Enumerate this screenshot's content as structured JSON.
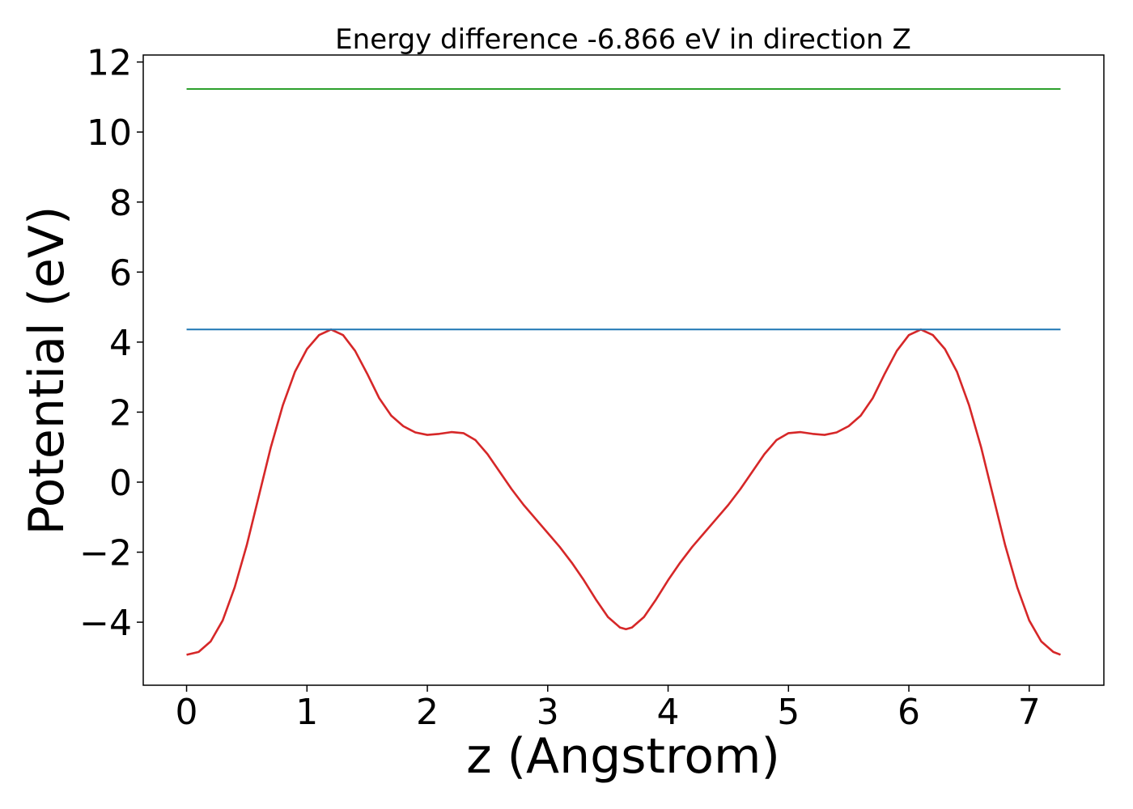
{
  "chart_data": {
    "type": "line",
    "title": "Energy difference -6.866 eV in direction Z",
    "xlabel": "z (Angstrom)",
    "ylabel": "Potential (eV)",
    "xlim": [
      -0.36,
      7.62
    ],
    "ylim": [
      -5.8,
      12.2
    ],
    "xticks": [
      0,
      1,
      2,
      3,
      4,
      5,
      6,
      7
    ],
    "yticks": [
      -4,
      -2,
      0,
      2,
      4,
      6,
      8,
      10,
      12
    ],
    "grid": false,
    "series": [
      {
        "color": "#d62728",
        "style": "curve",
        "points": [
          [
            0.0,
            -4.93
          ],
          [
            0.1,
            -4.85
          ],
          [
            0.2,
            -4.55
          ],
          [
            0.3,
            -3.95
          ],
          [
            0.4,
            -3.0
          ],
          [
            0.5,
            -1.8
          ],
          [
            0.6,
            -0.4
          ],
          [
            0.7,
            1.0
          ],
          [
            0.8,
            2.2
          ],
          [
            0.9,
            3.15
          ],
          [
            1.0,
            3.8
          ],
          [
            1.1,
            4.2
          ],
          [
            1.2,
            4.36
          ],
          [
            1.3,
            4.2
          ],
          [
            1.4,
            3.75
          ],
          [
            1.5,
            3.1
          ],
          [
            1.6,
            2.4
          ],
          [
            1.7,
            1.9
          ],
          [
            1.8,
            1.6
          ],
          [
            1.9,
            1.42
          ],
          [
            2.0,
            1.35
          ],
          [
            2.1,
            1.38
          ],
          [
            2.2,
            1.43
          ],
          [
            2.3,
            1.4
          ],
          [
            2.4,
            1.2
          ],
          [
            2.5,
            0.8
          ],
          [
            2.6,
            0.3
          ],
          [
            2.7,
            -0.2
          ],
          [
            2.8,
            -0.65
          ],
          [
            2.9,
            -1.05
          ],
          [
            3.0,
            -1.45
          ],
          [
            3.1,
            -1.85
          ],
          [
            3.2,
            -2.3
          ],
          [
            3.3,
            -2.8
          ],
          [
            3.4,
            -3.35
          ],
          [
            3.5,
            -3.85
          ],
          [
            3.6,
            -4.15
          ],
          [
            3.65,
            -4.2
          ],
          [
            3.7,
            -4.15
          ],
          [
            3.8,
            -3.85
          ],
          [
            3.9,
            -3.35
          ],
          [
            4.0,
            -2.8
          ],
          [
            4.1,
            -2.3
          ],
          [
            4.2,
            -1.85
          ],
          [
            4.3,
            -1.45
          ],
          [
            4.4,
            -1.05
          ],
          [
            4.5,
            -0.65
          ],
          [
            4.6,
            -0.2
          ],
          [
            4.7,
            0.3
          ],
          [
            4.8,
            0.8
          ],
          [
            4.9,
            1.2
          ],
          [
            5.0,
            1.4
          ],
          [
            5.1,
            1.43
          ],
          [
            5.2,
            1.38
          ],
          [
            5.3,
            1.35
          ],
          [
            5.4,
            1.42
          ],
          [
            5.5,
            1.6
          ],
          [
            5.6,
            1.9
          ],
          [
            5.7,
            2.4
          ],
          [
            5.8,
            3.1
          ],
          [
            5.9,
            3.75
          ],
          [
            6.0,
            4.2
          ],
          [
            6.1,
            4.36
          ],
          [
            6.2,
            4.2
          ],
          [
            6.3,
            3.8
          ],
          [
            6.4,
            3.15
          ],
          [
            6.5,
            2.2
          ],
          [
            6.6,
            1.0
          ],
          [
            6.7,
            -0.4
          ],
          [
            6.8,
            -1.8
          ],
          [
            6.9,
            -3.0
          ],
          [
            7.0,
            -3.95
          ],
          [
            7.1,
            -4.55
          ],
          [
            7.2,
            -4.85
          ],
          [
            7.26,
            -4.93
          ]
        ]
      },
      {
        "color": "#1f77b4",
        "style": "hline",
        "y": 4.36,
        "x": [
          0.0,
          7.26
        ]
      },
      {
        "color": "#2ca02c",
        "style": "hline",
        "y": 11.23,
        "x": [
          0.0,
          7.26
        ]
      }
    ]
  }
}
